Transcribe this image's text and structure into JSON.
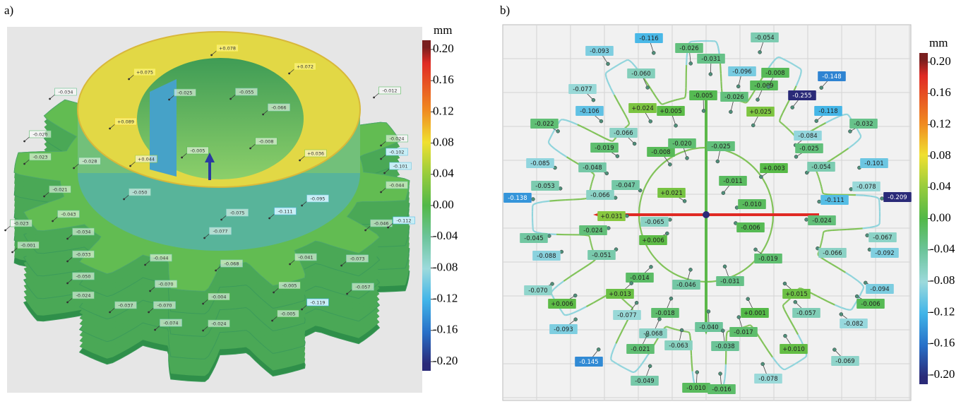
{
  "panel_a": {
    "label": "a)",
    "colorbar": {
      "unit": "mm",
      "range": [
        -0.2,
        0.2
      ],
      "ticks": [
        {
          "value": 0.2,
          "label": "0.20"
        },
        0.16,
        0.12,
        0.08,
        0.04,
        {
          "value": 0,
          "label": "0.00"
        },
        -0.04,
        -0.08,
        -0.12,
        -0.16,
        {
          "value": -0.2,
          "label": "-0.20"
        }
      ]
    },
    "annotations": {
      "values": [
        0.078,
        0.075,
        0.072,
        0.089,
        -0.034,
        -0.025,
        -0.055,
        -0.066,
        -0.012,
        -0.02,
        -0.008,
        -0.024,
        -0.005,
        0.044,
        0.036,
        -0.102,
        -0.023,
        -0.028,
        -0.101,
        -0.021,
        -0.044,
        -0.05,
        -0.095,
        -0.043,
        -0.075,
        -0.111,
        -0.023,
        -0.034,
        -0.077,
        -0.046,
        -0.112,
        -0.001,
        -0.033,
        -0.044,
        -0.068,
        -0.041,
        -0.073,
        -0.05,
        -0.07,
        -0.005,
        -0.057,
        -0.024,
        -0.037,
        -0.07,
        -0.004,
        -0.119,
        -0.074,
        -0.024,
        -0.005
      ],
      "value_labels": [
        "+0.078",
        "+0.075",
        "+0.072",
        "+0.089",
        "-0.034",
        "-0.025",
        "-0.055",
        "-0.066",
        "-0.012",
        "-0.020",
        "-0.008",
        "-0.024",
        "-0.005",
        "+0.044",
        "+0.036",
        "-0.102",
        "-0.023",
        "-0.028",
        "-0.101",
        "-0.021",
        "-0.044",
        "-0.050",
        "-0.095",
        "-0.043",
        "-0.075",
        "-0.111",
        "-0.023",
        "-0.034",
        "-0.077",
        "-0.046",
        "-0.112",
        "-0.001",
        "-0.033",
        "-0.044",
        "-0.068",
        "-0.041",
        "-0.073",
        "-0.050",
        "-0.070",
        "-0.005",
        "-0.057",
        "-0.024",
        "-0.037",
        "-0.070",
        "-0.004",
        "-0.119",
        "-0.074",
        "-0.024",
        "-0.005"
      ]
    }
  },
  "panel_b": {
    "label": "b)",
    "colorbar": {
      "unit": "mm",
      "range": [
        -0.2,
        0.2
      ],
      "ticks": [
        {
          "value": 0.2,
          "label": "0.20"
        },
        0.16,
        0.12,
        0.08,
        0.04,
        {
          "value": 0,
          "label": "0.00"
        },
        -0.04,
        -0.08,
        -0.12,
        -0.16,
        {
          "value": -0.2,
          "label": "-0.20"
        }
      ]
    },
    "annotations": {
      "values": [
        -0.116,
        -0.026,
        -0.031,
        -0.054,
        -0.096,
        -0.009,
        -0.008,
        -0.148,
        -0.255,
        -0.118,
        -0.093,
        -0.06,
        -0.077,
        0.024,
        0.005,
        -0.005,
        -0.026,
        0.025,
        -0.106,
        -0.066,
        -0.022,
        -0.019,
        -0.084,
        -0.025,
        -0.032,
        -0.008,
        -0.02,
        -0.025,
        0.003,
        -0.011,
        -0.01,
        -0.085,
        -0.048,
        -0.054,
        -0.101,
        -0.047,
        0.021,
        -0.053,
        -0.066,
        -0.138,
        0.031,
        -0.065,
        -0.078,
        -0.111,
        -0.209,
        -0.024,
        0.006,
        -0.006,
        -0.024,
        -0.045,
        -0.051,
        -0.019,
        -0.067,
        -0.066,
        -0.092,
        -0.088,
        -0.014,
        -0.046,
        -0.031,
        0.013,
        0.015,
        -0.057,
        -0.094,
        -0.07,
        -0.077,
        -0.006,
        0.006,
        -0.018,
        -0.04,
        0.001,
        -0.082,
        -0.068,
        -0.017,
        -0.093,
        -0.063,
        -0.038,
        -0.021,
        0.01,
        -0.145,
        -0.069,
        -0.049,
        -0.078,
        -0.01,
        -0.016
      ],
      "value_labels": [
        "-0.116",
        "-0.026",
        "-0.031",
        "-0.054",
        "-0.096",
        "-0.009",
        "-0.008",
        "-0.148",
        "-0.255",
        "-0.118",
        "-0.093",
        "-0.060",
        "-0.077",
        "+0.024",
        "+0.005",
        "-0.005",
        "-0.026",
        "+0.025",
        "-0.106",
        "-0.066",
        "-0.022",
        "-0.019",
        "-0.084",
        "-0.025",
        "-0.032",
        "-0.008",
        "-0.020",
        "-0.025",
        "+0.003",
        "-0.011",
        "-0.010",
        "-0.085",
        "-0.048",
        "-0.054",
        "-0.101",
        "-0.047",
        "+0.021",
        "-0.053",
        "-0.066",
        "-0.138",
        "+0.031",
        "-0.065",
        "-0.078",
        "-0.111",
        "-0.209",
        "-0.024",
        "+0.006",
        "-0.006",
        "-0.024",
        "-0.045",
        "-0.051",
        "-0.019",
        "-0.067",
        "-0.066",
        "-0.092",
        "-0.088",
        "-0.014",
        "-0.046",
        "-0.031",
        "+0.013",
        "+0.015",
        "-0.057",
        "-0.094",
        "-0.070",
        "-0.077",
        "-0.006",
        "+0.006",
        "-0.018",
        "-0.040",
        "+0.001",
        "-0.082",
        "-0.068",
        "-0.017",
        "-0.093",
        "-0.063",
        "-0.038",
        "-0.021",
        "+0.010",
        "-0.145",
        "-0.069",
        "-0.049",
        "-0.078",
        "-0.010",
        "-0.016"
      ]
    }
  }
}
